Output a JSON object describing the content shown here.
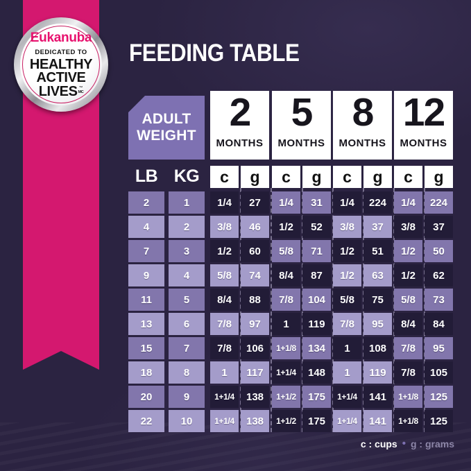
{
  "title": "FEEDING TABLE",
  "badge": {
    "brand": "Eukanuba",
    "tagline": "DEDICATED TO",
    "lines": [
      "HEALTHY",
      "ACTIVE",
      "LIVES"
    ],
    "trademark": "™",
    "trademark_small": "MC"
  },
  "chart_data": {
    "type": "table",
    "title": "FEEDING TABLE",
    "corner_header": [
      "ADULT",
      "WEIGHT"
    ],
    "weight_units": [
      "LB",
      "KG"
    ],
    "age_columns": [
      {
        "number": "2",
        "unit": "MONTHS"
      },
      {
        "number": "5",
        "unit": "MONTHS"
      },
      {
        "number": "8",
        "unit": "MONTHS"
      },
      {
        "number": "12",
        "unit": "MONTHS"
      }
    ],
    "measure_units": [
      "c",
      "g"
    ],
    "rows": [
      {
        "lb": "2",
        "kg": "1",
        "values": [
          "1/4",
          "27",
          "1/4",
          "31",
          "1/4",
          "224",
          "1/4",
          "224"
        ]
      },
      {
        "lb": "4",
        "kg": "2",
        "values": [
          "3/8",
          "46",
          "1/2",
          "52",
          "3/8",
          "37",
          "3/8",
          "37"
        ]
      },
      {
        "lb": "7",
        "kg": "3",
        "values": [
          "1/2",
          "60",
          "5/8",
          "71",
          "1/2",
          "51",
          "1/2",
          "50"
        ]
      },
      {
        "lb": "9",
        "kg": "4",
        "values": [
          "5/8",
          "74",
          "8/4",
          "87",
          "1/2",
          "63",
          "1/2",
          "62"
        ]
      },
      {
        "lb": "11",
        "kg": "5",
        "values": [
          "8/4",
          "88",
          "7/8",
          "104",
          "5/8",
          "75",
          "5/8",
          "73"
        ]
      },
      {
        "lb": "13",
        "kg": "6",
        "values": [
          "7/8",
          "97",
          "1",
          "119",
          "7/8",
          "95",
          "8/4",
          "84"
        ]
      },
      {
        "lb": "15",
        "kg": "7",
        "values": [
          "7/8",
          "106",
          "1+1/8",
          "134",
          "1",
          "108",
          "7/8",
          "95"
        ]
      },
      {
        "lb": "18",
        "kg": "8",
        "values": [
          "1",
          "117",
          "1+1/4",
          "148",
          "1",
          "119",
          "7/8",
          "105"
        ]
      },
      {
        "lb": "20",
        "kg": "9",
        "values": [
          "1+1/4",
          "138",
          "1+1/2",
          "175",
          "1+1/4",
          "141",
          "1+1/8",
          "125"
        ]
      },
      {
        "lb": "22",
        "kg": "10",
        "values": [
          "1+1/4",
          "138",
          "1+1/2",
          "175",
          "1+1/4",
          "141",
          "1+1/8",
          "125"
        ]
      }
    ],
    "legend": {
      "cups_label": "c : cups",
      "separator": "•",
      "grams_label": "g : grams"
    }
  },
  "colors": {
    "background": "#2B2341",
    "ribbon_pink": "#D4186F",
    "brand_pink": "#E8116E",
    "header_purple": "#7E71B2",
    "cell_dark": "#221C37",
    "cell_light_a": "#8276AC",
    "cell_light_b": "#A49CCA",
    "legend_muted": "#8D86A8"
  }
}
